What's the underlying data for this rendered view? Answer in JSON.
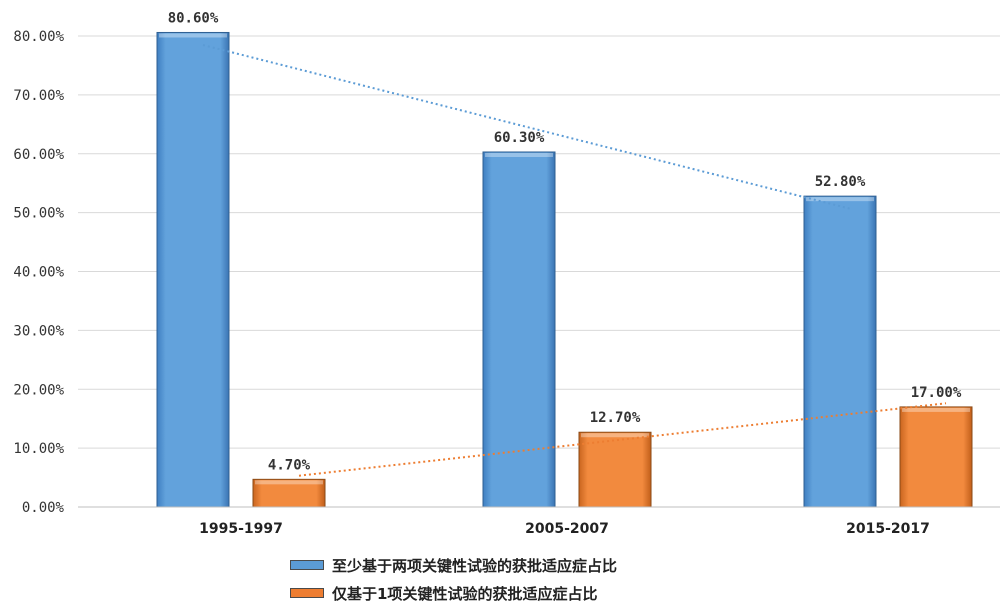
{
  "chart_data": {
    "type": "bar",
    "categories": [
      "1995-1997",
      "2005-2007",
      "2015-2017"
    ],
    "series": [
      {
        "name": "至少基于两项关键性试验的获批适应症占比",
        "values": [
          80.6,
          60.3,
          52.8
        ],
        "labels": [
          "80.60%",
          "60.30%",
          "52.80%"
        ],
        "color": "#5b9bd5"
      },
      {
        "name": "仅基于1项关键性试验的获批适应症占比",
        "values": [
          4.7,
          12.7,
          17.0
        ],
        "labels": [
          "4.70%",
          "12.70%",
          "17.00%"
        ],
        "color": "#ed7d31"
      }
    ],
    "y_ticks": [
      "0.00%",
      "10.00%",
      "20.00%",
      "30.00%",
      "40.00%",
      "50.00%",
      "60.00%",
      "70.00%",
      "80.00%"
    ],
    "ylim": [
      0,
      80
    ],
    "grid": true,
    "trendlines": "dotted linear trendline per series",
    "legend_position": "bottom"
  }
}
